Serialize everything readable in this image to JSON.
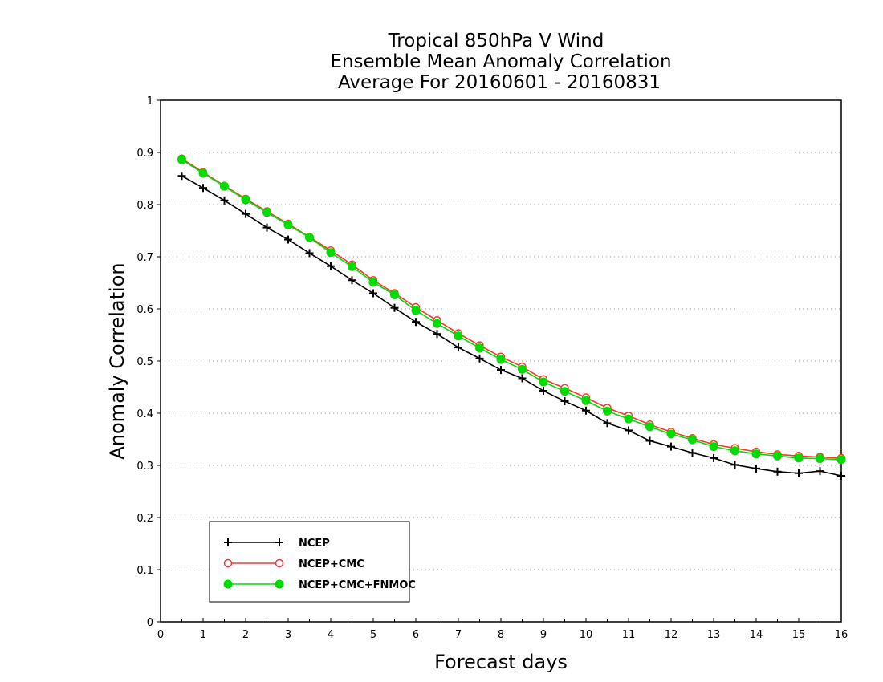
{
  "chart_data": {
    "type": "line",
    "title_lines": [
      "Tropical 850hPa V Wind",
      "Ensemble Mean Anomaly Correlation",
      "Average For 20160601 - 20160831"
    ],
    "xlabel": "Forecast days",
    "ylabel": "Anomaly Correlation",
    "xlim": [
      0,
      16
    ],
    "ylim": [
      0,
      1
    ],
    "x_ticks": [
      "0",
      "1",
      "2",
      "3",
      "4",
      "5",
      "6",
      "7",
      "8",
      "9",
      "10",
      "11",
      "12",
      "13",
      "14",
      "15",
      "16"
    ],
    "y_ticks": [
      "0",
      "0.1",
      "0.2",
      "0.3",
      "0.4",
      "0.5",
      "0.6",
      "0.7",
      "0.8",
      "0.9",
      "1"
    ],
    "grid": "horizontal-dotted",
    "legend_position": "bottom-left",
    "x": [
      0.5,
      1,
      1.5,
      2,
      2.5,
      3,
      3.5,
      4,
      4.5,
      5,
      5.5,
      6,
      6.5,
      7,
      7.5,
      8,
      8.5,
      9,
      9.5,
      10,
      10.5,
      11,
      11.5,
      12,
      12.5,
      13,
      13.5,
      14,
      14.5,
      15,
      15.5,
      16
    ],
    "series": [
      {
        "name": "NCEP",
        "color": "#000000",
        "marker": "plus",
        "values": [
          0.855,
          0.832,
          0.808,
          0.782,
          0.756,
          0.733,
          0.707,
          0.682,
          0.655,
          0.63,
          0.602,
          0.575,
          0.552,
          0.526,
          0.505,
          0.483,
          0.467,
          0.443,
          0.423,
          0.405,
          0.381,
          0.367,
          0.347,
          0.336,
          0.324,
          0.314,
          0.301,
          0.294,
          0.288,
          0.285,
          0.289,
          0.28
        ]
      },
      {
        "name": "NCEP+CMC",
        "color": "#ff3333",
        "marker": "open-circle",
        "values": [
          0.888,
          0.862,
          0.836,
          0.811,
          0.787,
          0.763,
          0.738,
          0.712,
          0.685,
          0.655,
          0.63,
          0.603,
          0.578,
          0.553,
          0.53,
          0.508,
          0.489,
          0.465,
          0.448,
          0.43,
          0.41,
          0.395,
          0.378,
          0.364,
          0.352,
          0.34,
          0.333,
          0.326,
          0.321,
          0.318,
          0.316,
          0.314
        ]
      },
      {
        "name": "NCEP+CMC+FNMOC",
        "color": "#00dd00",
        "marker": "filled-circle",
        "values": [
          0.886,
          0.86,
          0.835,
          0.809,
          0.785,
          0.761,
          0.737,
          0.708,
          0.681,
          0.651,
          0.627,
          0.597,
          0.572,
          0.548,
          0.525,
          0.503,
          0.484,
          0.46,
          0.442,
          0.424,
          0.404,
          0.389,
          0.374,
          0.36,
          0.349,
          0.336,
          0.328,
          0.322,
          0.318,
          0.314,
          0.313,
          0.311
        ]
      }
    ]
  }
}
